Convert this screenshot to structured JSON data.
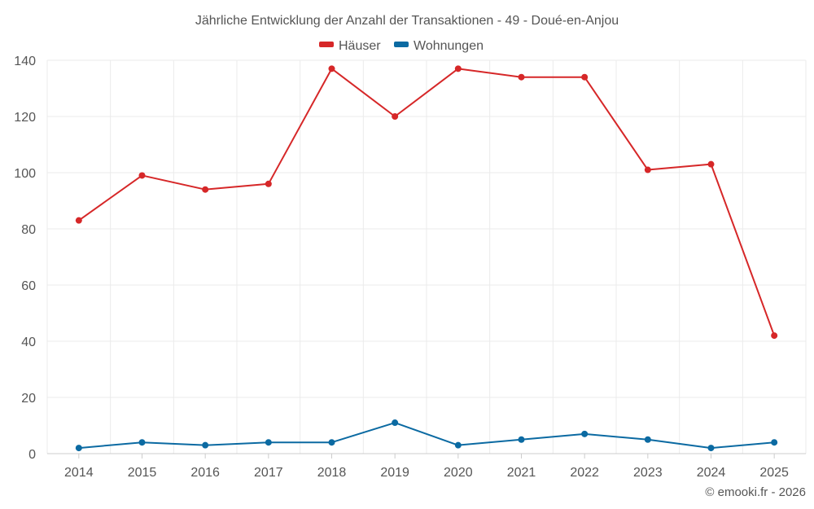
{
  "chart_data": {
    "type": "line",
    "title": "Jährliche Entwicklung der Anzahl der Transaktionen - 49 - Doué-en-Anjou",
    "categories": [
      "2014",
      "2015",
      "2016",
      "2017",
      "2018",
      "2019",
      "2020",
      "2021",
      "2022",
      "2023",
      "2024",
      "2025"
    ],
    "series": [
      {
        "name": "Häuser",
        "color": "#d62728",
        "values": [
          83,
          99,
          94,
          96,
          137,
          120,
          137,
          134,
          134,
          101,
          103,
          42
        ]
      },
      {
        "name": "Wohnungen",
        "color": "#0b6aa2",
        "values": [
          2,
          4,
          3,
          4,
          4,
          11,
          3,
          5,
          7,
          5,
          2,
          4
        ]
      }
    ],
    "ylim": [
      0,
      140
    ],
    "yticks": [
      0,
      20,
      40,
      60,
      80,
      100,
      120,
      140
    ],
    "xlabel": "",
    "ylabel": "",
    "grid": true,
    "legend_position": "top-center"
  },
  "credit": "© emooki.fr - 2026"
}
